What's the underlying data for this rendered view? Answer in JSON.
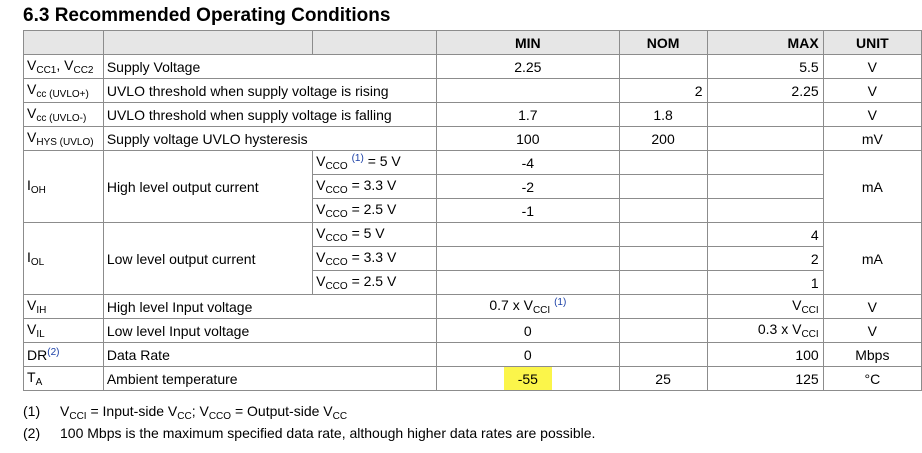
{
  "title": "6.3 Recommended Operating Conditions",
  "headers": {
    "min": "MIN",
    "nom": "NOM",
    "max": "MAX",
    "unit": "UNIT"
  },
  "rows": {
    "vcc": {
      "desc": "Supply Voltage",
      "min": "2.25",
      "max": "5.5",
      "unit": "V"
    },
    "uvlo_rise": {
      "desc": "UVLO threshold when supply voltage is rising",
      "nom": "2",
      "max": "2.25",
      "unit": "V"
    },
    "uvlo_fall": {
      "desc": "UVLO threshold when supply voltage is falling",
      "min": "1.7",
      "nom": "1.8",
      "unit": "V"
    },
    "vhys": {
      "desc": "Supply voltage UVLO hysteresis",
      "min": "100",
      "nom": "200",
      "unit": "mV"
    },
    "ioh": {
      "desc": "High level output current",
      "unit": "mA",
      "cond1": "= 5 V",
      "min1": "-4",
      "cond2": "= 3.3 V",
      "min2": "-2",
      "cond3": "= 2.5 V",
      "min3": "-1"
    },
    "iol": {
      "desc": "Low level output current",
      "unit": "mA",
      "cond1": "= 5 V",
      "max1": "4",
      "cond2": "= 3.3 V",
      "max2": "2",
      "cond3": "= 2.5 V",
      "max3": "1"
    },
    "vih": {
      "desc": "High level Input voltage",
      "min": "0.7 x V",
      "unit": "V"
    },
    "vil": {
      "desc": "Low level Input voltage",
      "min": "0",
      "max": "0.3 x V",
      "unit": "V"
    },
    "dr": {
      "desc": "Data Rate",
      "min": "0",
      "max": "100",
      "unit": "Mbps"
    },
    "ta": {
      "desc": "Ambient temperature",
      "min": "-55",
      "nom": "25",
      "max": "125",
      "unit": "°C"
    }
  },
  "footnotes": {
    "n1_num": "(1)",
    "n2_num": "(2)",
    "n2_text": "100 Mbps is the maximum specified data rate, although higher data rates are possible."
  }
}
